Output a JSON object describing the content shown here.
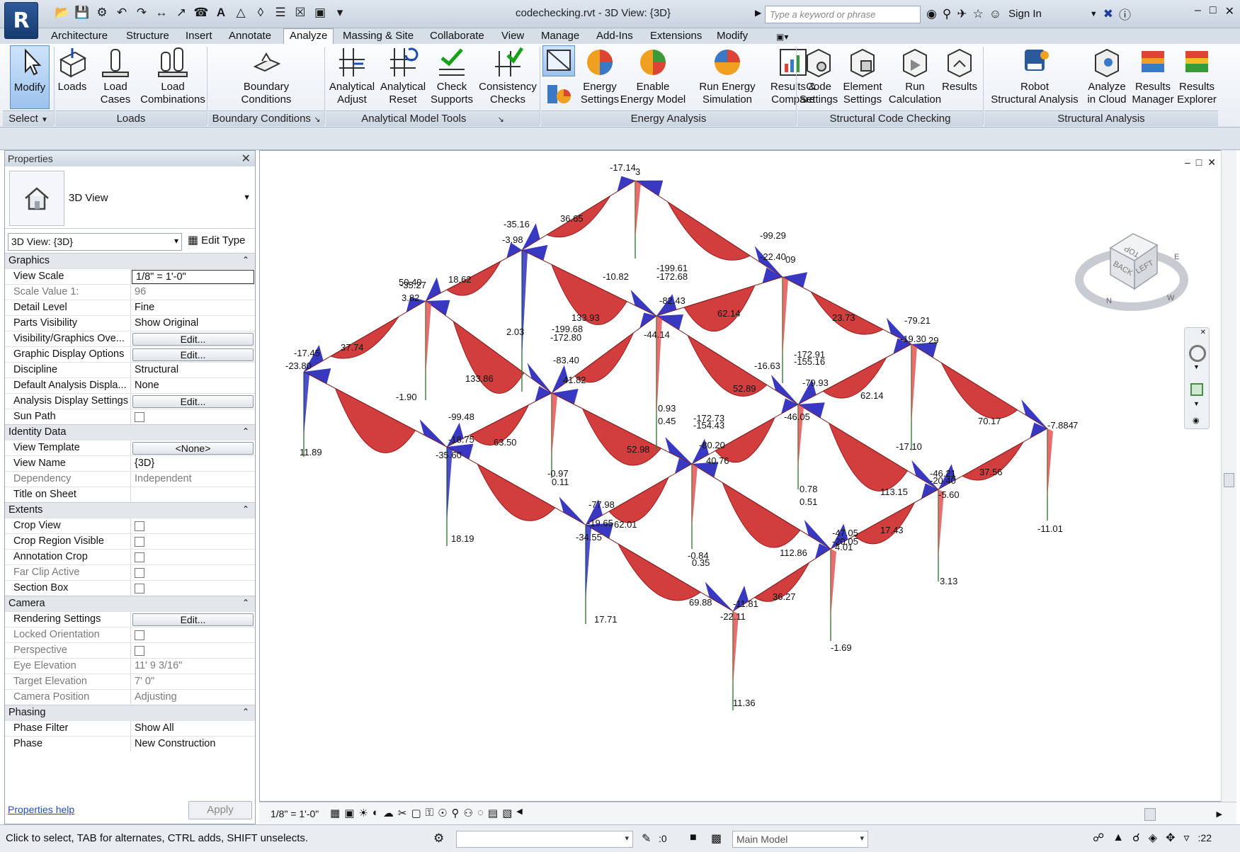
{
  "title_bar": {
    "app_menu_label": "R",
    "title": "codechecking.rvt - 3D View: {3D}",
    "search_placeholder": "Type a keyword or phrase",
    "sign_in": "Sign In"
  },
  "ribbon_tabs": [
    "Architecture",
    "Structure",
    "Insert",
    "Annotate",
    "Analyze",
    "Massing & Site",
    "Collaborate",
    "View",
    "Manage",
    "Add-Ins",
    "Extensions",
    "Modify"
  ],
  "active_tab": "Analyze",
  "ribbon": {
    "buttons": [
      {
        "line1": "Modify",
        "line2": "",
        "icon": "cursor-arrow-icon"
      },
      {
        "line1": "Loads",
        "line2": "",
        "icon": "loads-icon"
      },
      {
        "line1": "Load",
        "line2": "Cases",
        "icon": "load-cases-icon"
      },
      {
        "line1": "Load",
        "line2": "Combinations",
        "icon": "load-combinations-icon"
      },
      {
        "line1": "Boundary",
        "line2": "Conditions",
        "icon": "boundary-conditions-icon"
      },
      {
        "line1": "Analytical",
        "line2": "Adjust",
        "icon": "analytical-adjust-icon"
      },
      {
        "line1": "Analytical",
        "line2": "Reset",
        "icon": "analytical-reset-icon"
      },
      {
        "line1": "Check",
        "line2": "Supports",
        "icon": "check-supports-icon"
      },
      {
        "line1": "Consistency",
        "line2": "Checks",
        "icon": "consistency-checks-icon"
      },
      {
        "line1": "Energy",
        "line2": "Settings",
        "icon": "energy-settings-icon"
      },
      {
        "line1": "Enable",
        "line2": "Energy Model",
        "icon": "enable-energy-model-icon"
      },
      {
        "line1": "Run Energy",
        "line2": "Simulation",
        "icon": "run-energy-simulation-icon"
      },
      {
        "line1": "Results &",
        "line2": "Compare",
        "icon": "results-compare-icon"
      },
      {
        "line1": "Code",
        "line2": "Settings",
        "icon": "code-settings-icon"
      },
      {
        "line1": "Element",
        "line2": "Settings",
        "icon": "element-settings-icon"
      },
      {
        "line1": "Run",
        "line2": "Calculation",
        "icon": "run-calculation-icon"
      },
      {
        "line1": "Results",
        "line2": "",
        "icon": "results-icon"
      },
      {
        "line1": "Robot",
        "line2": "Structural Analysis",
        "icon": "robot-structural-analysis-icon"
      },
      {
        "line1": "Analyze",
        "line2": "in Cloud",
        "icon": "analyze-in-cloud-icon"
      },
      {
        "line1": "Results",
        "line2": "Manager",
        "icon": "results-manager-icon"
      },
      {
        "line1": "Results",
        "line2": "Explorer",
        "icon": "results-explorer-icon"
      }
    ],
    "groups": [
      "Select",
      "Loads",
      "Boundary Conditions",
      "Analytical Model Tools",
      "Energy Analysis",
      "Structural Code Checking",
      "Structural Analysis"
    ]
  },
  "properties": {
    "title": "Properties",
    "type_name": "3D View",
    "instance_selector": "3D View: {3D}",
    "edit_type": "Edit Type",
    "sections": [
      {
        "name": "Graphics",
        "rows": [
          {
            "name": "View Scale",
            "value": "1/8\" = 1'-0\"",
            "kind": "input"
          },
          {
            "name": "Scale Value    1:",
            "value": "96",
            "kind": "dim"
          },
          {
            "name": "Detail Level",
            "value": "Fine",
            "kind": "text"
          },
          {
            "name": "Parts Visibility",
            "value": "Show Original",
            "kind": "text"
          },
          {
            "name": "Visibility/Graphics Ove...",
            "value": "Edit...",
            "kind": "button"
          },
          {
            "name": "Graphic Display Options",
            "value": "Edit...",
            "kind": "button"
          },
          {
            "name": "Discipline",
            "value": "Structural",
            "kind": "text"
          },
          {
            "name": "Default Analysis Displa...",
            "value": "None",
            "kind": "text"
          },
          {
            "name": "Analysis Display Settings",
            "value": "Edit...",
            "kind": "button"
          },
          {
            "name": "Sun Path",
            "value": "",
            "kind": "check"
          }
        ]
      },
      {
        "name": "Identity Data",
        "rows": [
          {
            "name": "View Template",
            "value": "<None>",
            "kind": "button"
          },
          {
            "name": "View Name",
            "value": "{3D}",
            "kind": "text"
          },
          {
            "name": "Dependency",
            "value": "Independent",
            "kind": "dim"
          },
          {
            "name": "Title on Sheet",
            "value": "",
            "kind": "text"
          }
        ]
      },
      {
        "name": "Extents",
        "rows": [
          {
            "name": "Crop View",
            "value": "",
            "kind": "check"
          },
          {
            "name": "Crop Region Visible",
            "value": "",
            "kind": "check"
          },
          {
            "name": "Annotation Crop",
            "value": "",
            "kind": "check"
          },
          {
            "name": "Far Clip Active",
            "value": "",
            "kind": "checkdim"
          },
          {
            "name": "Section Box",
            "value": "",
            "kind": "check"
          }
        ]
      },
      {
        "name": "Camera",
        "rows": [
          {
            "name": "Rendering Settings",
            "value": "Edit...",
            "kind": "button"
          },
          {
            "name": "Locked Orientation",
            "value": "",
            "kind": "checkdim"
          },
          {
            "name": "Perspective",
            "value": "",
            "kind": "checkdim"
          },
          {
            "name": "Eye Elevation",
            "value": "11'  9 3/16\"",
            "kind": "dim"
          },
          {
            "name": "Target Elevation",
            "value": "7'  0\"",
            "kind": "dim"
          },
          {
            "name": "Camera Position",
            "value": "Adjusting",
            "kind": "dim"
          }
        ]
      },
      {
        "name": "Phasing",
        "rows": [
          {
            "name": "Phase Filter",
            "value": "Show All",
            "kind": "text"
          },
          {
            "name": "Phase",
            "value": "New Construction",
            "kind": "text"
          }
        ]
      }
    ],
    "help_link": "Properties help",
    "apply": "Apply"
  },
  "view": {
    "labels": [
      {
        "t": "-17.14",
        "k": "n1"
      },
      {
        "t": "3",
        "k": "n1b"
      },
      {
        "t": "-35.16",
        "k": "n2"
      },
      {
        "t": "-3.98",
        "k": "n2b"
      },
      {
        "t": "36.65",
        "k": "b1"
      },
      {
        "t": "-99.29",
        "k": "n3"
      },
      {
        "t": "-22.40",
        "k": "n3b"
      },
      {
        "t": "09",
        "k": "n3c"
      },
      {
        "t": "-10.82",
        "k": "c1"
      },
      {
        "t": "18.62",
        "k": "b2"
      },
      {
        "t": "50.40",
        "k": "n4"
      },
      {
        "t": "-35.27",
        "k": "n4b"
      },
      {
        "t": "3.82",
        "k": "n4c"
      },
      {
        "t": "-199.61",
        "k": "n5"
      },
      {
        "t": "-172.68",
        "k": "n5b"
      },
      {
        "t": "-82.43",
        "k": "n5c"
      },
      {
        "t": "62.14",
        "k": "b3"
      },
      {
        "t": "133.93",
        "k": "b4"
      },
      {
        "t": "23.73",
        "k": "b5"
      },
      {
        "t": "-44.14",
        "k": "n5d"
      },
      {
        "t": "2.03",
        "k": "c2"
      },
      {
        "t": "-79.21",
        "k": "n6"
      },
      {
        "t": "-19.30",
        "k": "n6b"
      },
      {
        "t": "29",
        "k": "n6c"
      },
      {
        "t": "-17.45",
        "k": "n7"
      },
      {
        "t": "37.74",
        "k": "b6"
      },
      {
        "t": "-23.80",
        "k": "n7b"
      },
      {
        "t": "-199.68",
        "k": "n8"
      },
      {
        "t": "-172.80",
        "k": "n8b"
      },
      {
        "t": "-83.40",
        "k": "n8c"
      },
      {
        "t": "41.82",
        "k": "n8d"
      },
      {
        "t": "133.86",
        "k": "b7"
      },
      {
        "t": "-16.63",
        "k": "c3"
      },
      {
        "t": "-172.91",
        "k": "n9"
      },
      {
        "t": "-155.16",
        "k": "n9b"
      },
      {
        "t": "-79.93",
        "k": "n9c"
      },
      {
        "t": "52.89",
        "k": "b8"
      },
      {
        "t": "62.14",
        "k": "b9"
      },
      {
        "t": "-1.90",
        "k": "c4"
      },
      {
        "t": "-46.05",
        "k": "n9d"
      },
      {
        "t": "0.93",
        "k": "c5"
      },
      {
        "t": "0.45",
        "k": "c5b"
      },
      {
        "t": "-99.48",
        "k": "n10"
      },
      {
        "t": "-18.75",
        "k": "n10b"
      },
      {
        "t": "63.50",
        "k": "b10"
      },
      {
        "t": "-35.60",
        "k": "n10c"
      },
      {
        "t": "11.89",
        "k": "c6"
      },
      {
        "t": "-172.73",
        "k": "n11"
      },
      {
        "t": "-154.43",
        "k": "n11b"
      },
      {
        "t": "-80.20",
        "k": "n11c"
      },
      {
        "t": "40.76",
        "k": "n11d"
      },
      {
        "t": "52.98",
        "k": "b11"
      },
      {
        "t": "-7.884",
        "k": "n12"
      },
      {
        "t": "7",
        "k": "n12b"
      },
      {
        "t": "70.17",
        "k": "b12"
      },
      {
        "t": "-17.10",
        "k": "c7"
      },
      {
        "t": "-0.97",
        "k": "c8"
      },
      {
        "t": "0.11",
        "k": "c8b"
      },
      {
        "t": "-46.21",
        "k": "n13"
      },
      {
        "t": "-20.40",
        "k": "n13b"
      },
      {
        "t": "37.56",
        "k": "b13"
      },
      {
        "t": "113.15",
        "k": "b14"
      },
      {
        "t": "-5.60",
        "k": "n13c"
      },
      {
        "t": "0.78",
        "k": "c9"
      },
      {
        "t": "0.51",
        "k": "c9b"
      },
      {
        "t": "-77.98",
        "k": "n14"
      },
      {
        "t": "-19.65",
        "k": "n14b"
      },
      {
        "t": "62.01",
        "k": "b15"
      },
      {
        "t": "-34.55",
        "k": "n14c"
      },
      {
        "t": "18.19",
        "k": "c10"
      },
      {
        "t": "-47.05",
        "k": "n15"
      },
      {
        "t": "-20.05",
        "k": "n15b"
      },
      {
        "t": "4.01",
        "k": "n15c"
      },
      {
        "t": "17.43",
        "k": "b16"
      },
      {
        "t": "112.86",
        "k": "b17"
      },
      {
        "t": "-11.01",
        "k": "c11"
      },
      {
        "t": "-0.84",
        "k": "c12"
      },
      {
        "t": "0.35",
        "k": "c12b"
      },
      {
        "t": "3.13",
        "k": "c13"
      },
      {
        "t": "36.27",
        "k": "b18"
      },
      {
        "t": "69.88",
        "k": "b19"
      },
      {
        "t": "-11.81",
        "k": "n16"
      },
      {
        "t": "-22.11",
        "k": "n16b"
      },
      {
        "t": "17.71",
        "k": "c14"
      },
      {
        "t": "-1.69",
        "k": "c15"
      },
      {
        "t": "11.36",
        "k": "c16"
      }
    ],
    "viewcube_faces": [
      "TOP",
      "BACK",
      "LEFT"
    ],
    "compass_letters": [
      "N",
      "W",
      "E"
    ]
  },
  "view_control_bar": {
    "scale": "1/8\" = 1'-0\""
  },
  "status_bar": {
    "message": "Click to select, TAB for alternates, CTRL adds, SHIFT unselects.",
    "zero": ":0",
    "model": "Main Model",
    "filter_count": ":22"
  },
  "colors": {
    "moment_positive": "#cc2222",
    "moment_negative": "#2222bb",
    "accent": "#2a5a9c"
  }
}
